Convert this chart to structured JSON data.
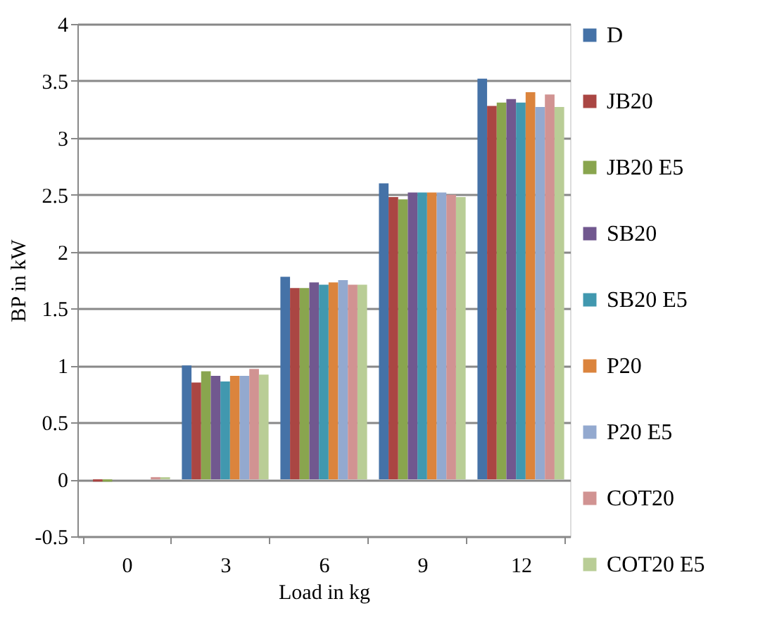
{
  "chart_data": {
    "type": "bar",
    "xlabel": "Load in kg",
    "ylabel": "BP in kW",
    "categories": [
      "0",
      "3",
      "6",
      "9",
      "12"
    ],
    "series": [
      {
        "name": "D",
        "color": "#4572a7",
        "values": [
          0,
          1.0,
          1.78,
          2.6,
          3.52
        ]
      },
      {
        "name": "JB20",
        "color": "#aa4643",
        "values": [
          -0.02,
          0.85,
          1.68,
          2.48,
          3.28
        ]
      },
      {
        "name": "JB20 E5",
        "color": "#89a54e",
        "values": [
          -0.02,
          0.95,
          1.68,
          2.46,
          3.31
        ]
      },
      {
        "name": "SB20",
        "color": "#71588f",
        "values": [
          0,
          0.91,
          1.73,
          2.52,
          3.34
        ]
      },
      {
        "name": "SB20 E5",
        "color": "#4198af",
        "values": [
          0,
          0.86,
          1.71,
          2.52,
          3.31
        ]
      },
      {
        "name": "P20",
        "color": "#db843d",
        "values": [
          0,
          0.91,
          1.73,
          2.52,
          3.4
        ]
      },
      {
        "name": "P20 E5",
        "color": "#93a9cf",
        "values": [
          0,
          0.91,
          1.75,
          2.52,
          3.27
        ]
      },
      {
        "name": "COT20",
        "color": "#d19392",
        "values": [
          0.02,
          0.97,
          1.71,
          2.5,
          3.38
        ]
      },
      {
        "name": "COT20 E5",
        "color": "#b9cd96",
        "values": [
          0.02,
          0.92,
          1.71,
          2.48,
          3.27
        ]
      }
    ],
    "ylim": [
      -0.5,
      4
    ],
    "yticks": [
      -0.5,
      0,
      0.5,
      1,
      1.5,
      2,
      2.5,
      3,
      3.5,
      4
    ],
    "grid": "y",
    "legend": "right"
  }
}
